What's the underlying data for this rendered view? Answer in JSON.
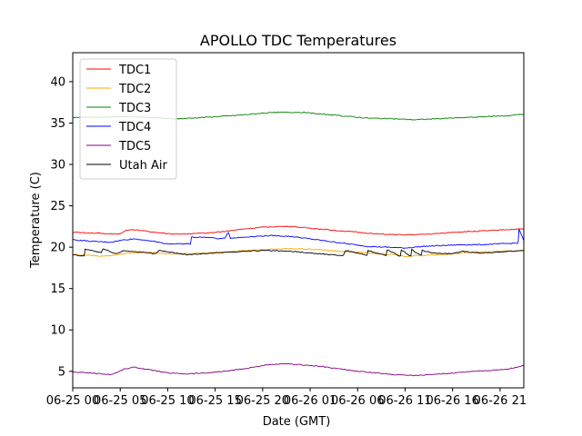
{
  "chart_data": {
    "type": "line",
    "title": "APOLLO TDC Temperatures",
    "xlabel": "Date (GMT)",
    "ylabel": "Temperature (C)",
    "x_unit": "hours since 06-25 00:00 GMT",
    "xlim": [
      0,
      47.5
    ],
    "ylim": [
      3,
      43.5
    ],
    "xticks": [
      {
        "value": 0,
        "label": "06-25 00"
      },
      {
        "value": 5,
        "label": "06-25 05"
      },
      {
        "value": 10,
        "label": "06-25 10"
      },
      {
        "value": 15,
        "label": "06-25 15"
      },
      {
        "value": 20,
        "label": "06-25 20"
      },
      {
        "value": 25,
        "label": "06-26 01"
      },
      {
        "value": 30,
        "label": "06-26 06"
      },
      {
        "value": 35,
        "label": "06-26 11"
      },
      {
        "value": 40,
        "label": "06-26 16"
      },
      {
        "value": 45,
        "label": "06-26 21"
      }
    ],
    "yticks": [
      5,
      10,
      15,
      20,
      25,
      30,
      35,
      40
    ],
    "legend_position": "top-left",
    "series": [
      {
        "name": "TDC1",
        "color": "#ff0000",
        "points": [
          [
            0,
            21.8
          ],
          [
            2,
            21.7
          ],
          [
            4,
            21.6
          ],
          [
            5,
            21.6
          ],
          [
            5.5,
            22.0
          ],
          [
            6.5,
            22.1
          ],
          [
            8,
            21.9
          ],
          [
            10,
            21.6
          ],
          [
            12,
            21.6
          ],
          [
            14,
            21.7
          ],
          [
            16,
            21.9
          ],
          [
            18,
            22.2
          ],
          [
            20,
            22.4
          ],
          [
            21.5,
            22.5
          ],
          [
            23,
            22.5
          ],
          [
            24,
            22.4
          ],
          [
            26,
            22.2
          ],
          [
            28,
            22.0
          ],
          [
            30,
            21.8
          ],
          [
            32,
            21.6
          ],
          [
            34,
            21.5
          ],
          [
            36,
            21.5
          ],
          [
            38,
            21.6
          ],
          [
            40,
            21.8
          ],
          [
            42,
            21.9
          ],
          [
            44,
            22.0
          ],
          [
            45.2,
            22.1
          ],
          [
            47.5,
            22.2
          ]
        ]
      },
      {
        "name": "TDC2",
        "color": "#ffa500",
        "points": [
          [
            0,
            19.1
          ],
          [
            2,
            19.0
          ],
          [
            3,
            18.9
          ],
          [
            4,
            19.0
          ],
          [
            6,
            19.3
          ],
          [
            8,
            19.4
          ],
          [
            10,
            19.2
          ],
          [
            12,
            19.2
          ],
          [
            14,
            19.3
          ],
          [
            16,
            19.4
          ],
          [
            18,
            19.6
          ],
          [
            20,
            19.7
          ],
          [
            22,
            19.8
          ],
          [
            24,
            19.8
          ],
          [
            26,
            19.7
          ],
          [
            28,
            19.5
          ],
          [
            30,
            19.4
          ],
          [
            32,
            19.2
          ],
          [
            34,
            19.1
          ],
          [
            35,
            18.9
          ],
          [
            37,
            19.0
          ],
          [
            39,
            19.1
          ],
          [
            41,
            19.3
          ],
          [
            43,
            19.4
          ],
          [
            45,
            19.5
          ],
          [
            47.5,
            19.6
          ]
        ]
      },
      {
        "name": "TDC3",
        "color": "#008000",
        "points": [
          [
            0,
            35.7
          ],
          [
            3,
            35.7
          ],
          [
            6,
            35.8
          ],
          [
            9,
            35.6
          ],
          [
            11,
            35.5
          ],
          [
            14,
            35.7
          ],
          [
            17,
            35.9
          ],
          [
            20,
            36.2
          ],
          [
            22,
            36.3
          ],
          [
            24,
            36.3
          ],
          [
            26,
            36.1
          ],
          [
            28,
            35.9
          ],
          [
            31,
            35.6
          ],
          [
            34,
            35.5
          ],
          [
            36,
            35.4
          ],
          [
            38,
            35.5
          ],
          [
            40,
            35.6
          ],
          [
            42,
            35.7
          ],
          [
            44,
            35.8
          ],
          [
            46,
            35.9
          ],
          [
            47.5,
            36.1
          ]
        ]
      },
      {
        "name": "TDC4",
        "color": "#0000ff",
        "points": [
          [
            0,
            20.9
          ],
          [
            2,
            20.7
          ],
          [
            4,
            20.6
          ],
          [
            5.5,
            20.9
          ],
          [
            6.5,
            21.0
          ],
          [
            8,
            20.8
          ],
          [
            10,
            20.4
          ],
          [
            12.4,
            20.4
          ],
          [
            12.5,
            21.2
          ],
          [
            14,
            21.2
          ],
          [
            15,
            21.1
          ],
          [
            15.5,
            21.0
          ],
          [
            16,
            21.1
          ],
          [
            16.4,
            21.8
          ],
          [
            16.6,
            21.1
          ],
          [
            18,
            21.2
          ],
          [
            19,
            21.3
          ],
          [
            21,
            21.4
          ],
          [
            23,
            21.3
          ],
          [
            25,
            21.0
          ],
          [
            27,
            20.7
          ],
          [
            29,
            20.4
          ],
          [
            31,
            20.1
          ],
          [
            33,
            20.0
          ],
          [
            35,
            19.9
          ],
          [
            37,
            20.1
          ],
          [
            39,
            20.2
          ],
          [
            41,
            20.3
          ],
          [
            43,
            20.3
          ],
          [
            46.9,
            20.5
          ],
          [
            47,
            22.2
          ],
          [
            47.5,
            20.8
          ]
        ]
      },
      {
        "name": "TDC5",
        "color": "#800080",
        "points": [
          [
            0,
            4.9
          ],
          [
            2,
            4.8
          ],
          [
            4,
            4.6
          ],
          [
            4.5,
            4.8
          ],
          [
            5.5,
            5.3
          ],
          [
            6.5,
            5.5
          ],
          [
            8,
            5.2
          ],
          [
            10,
            4.8
          ],
          [
            12,
            4.7
          ],
          [
            14,
            4.8
          ],
          [
            16,
            5.0
          ],
          [
            18,
            5.3
          ],
          [
            20,
            5.7
          ],
          [
            22,
            5.9
          ],
          [
            24,
            5.8
          ],
          [
            26,
            5.6
          ],
          [
            28,
            5.3
          ],
          [
            30,
            5.0
          ],
          [
            32,
            4.8
          ],
          [
            34,
            4.6
          ],
          [
            36,
            4.5
          ],
          [
            38,
            4.6
          ],
          [
            40,
            4.8
          ],
          [
            42,
            5.0
          ],
          [
            44,
            5.1
          ],
          [
            46,
            5.3
          ],
          [
            47.5,
            5.7
          ]
        ]
      },
      {
        "name": "Utah Air",
        "color": "#000000",
        "points": [
          [
            0,
            19.1
          ],
          [
            1.2,
            18.9
          ],
          [
            1.3,
            19.8
          ],
          [
            3,
            19.3
          ],
          [
            3.2,
            19.8
          ],
          [
            4.5,
            19.2
          ],
          [
            5.4,
            19.6
          ],
          [
            7,
            19.4
          ],
          [
            8.7,
            19.2
          ],
          [
            9.1,
            19.6
          ],
          [
            12,
            19.1
          ],
          [
            15,
            19.3
          ],
          [
            18,
            19.5
          ],
          [
            20,
            19.6
          ],
          [
            23,
            19.5
          ],
          [
            25,
            19.3
          ],
          [
            27,
            19.1
          ],
          [
            28.5,
            19.0
          ],
          [
            28.7,
            19.6
          ],
          [
            30,
            19.3
          ],
          [
            31,
            19.0
          ],
          [
            31.1,
            19.6
          ],
          [
            32,
            19.3
          ],
          [
            33,
            19.0
          ],
          [
            33.1,
            19.7
          ],
          [
            33.8,
            19.3
          ],
          [
            34.5,
            18.9
          ],
          [
            34.6,
            19.7
          ],
          [
            35.1,
            19.3
          ],
          [
            35.6,
            18.9
          ],
          [
            35.7,
            19.7
          ],
          [
            36.2,
            19.3
          ],
          [
            36.7,
            19.0
          ],
          [
            36.8,
            19.6
          ],
          [
            38,
            19.3
          ],
          [
            40,
            19.2
          ],
          [
            41,
            19.5
          ],
          [
            43,
            19.3
          ],
          [
            45,
            19.4
          ],
          [
            47.5,
            19.6
          ]
        ]
      }
    ]
  }
}
